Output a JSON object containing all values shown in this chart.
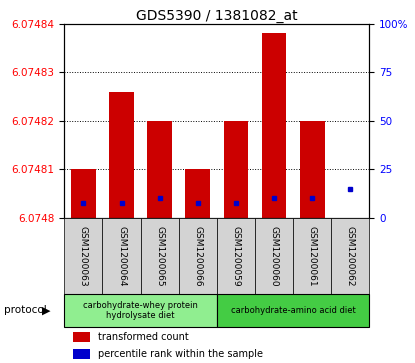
{
  "title": "GDS5390 / 1381082_at",
  "samples": [
    "GSM1200063",
    "GSM1200064",
    "GSM1200065",
    "GSM1200066",
    "GSM1200059",
    "GSM1200060",
    "GSM1200061",
    "GSM1200062"
  ],
  "red_values": [
    6.07481,
    6.074826,
    6.07482,
    6.07481,
    6.07482,
    6.074838,
    6.07482,
    6.0748
  ],
  "blue_values": [
    6.074803,
    6.074803,
    6.074804,
    6.074803,
    6.074803,
    6.074804,
    6.074804,
    6.074806
  ],
  "ymin": 6.0748,
  "ymax": 6.07484,
  "yticks": [
    6.0748,
    6.07481,
    6.07482,
    6.07483,
    6.07484
  ],
  "ytick_labels": [
    "6.0748",
    "6.07481",
    "6.07482",
    "6.07483",
    "6.07484"
  ],
  "right_yticks": [
    0,
    25,
    50,
    75,
    100
  ],
  "right_ytick_labels": [
    "0",
    "25",
    "50",
    "75",
    "100%"
  ],
  "protocol_groups": [
    {
      "label": "carbohydrate-whey protein\nhydrolysate diet",
      "start": 0,
      "end": 4,
      "color": "#90ee90"
    },
    {
      "label": "carbohydrate-amino acid diet",
      "start": 4,
      "end": 8,
      "color": "#44cc44"
    }
  ],
  "bar_color": "#cc0000",
  "blue_color": "#0000cc",
  "bar_width": 0.65,
  "title_fontsize": 10,
  "tick_fontsize": 7.5,
  "label_fontsize": 6.5,
  "legend_items": [
    "transformed count",
    "percentile rank within the sample"
  ],
  "protocol_label": "protocol"
}
